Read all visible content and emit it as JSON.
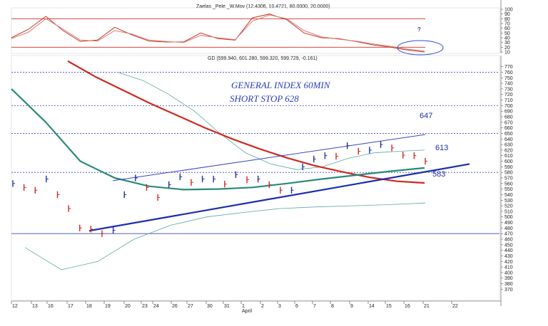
{
  "chart_data": [
    {
      "type": "line",
      "panel": "oscillator",
      "header": "Zaelas _Pele _W.Mov (12.4306, 10.4721, 80.0000, 20.0000)",
      "ylim": [
        10,
        100
      ],
      "yticks": [
        "100",
        "90",
        "80",
        "70",
        "60",
        "50",
        "40",
        "30",
        "20",
        "10"
      ],
      "levels": [
        80,
        20
      ],
      "series": [
        {
          "values": [
            40,
            58,
            85,
            55,
            32,
            35,
            62,
            46,
            33,
            31,
            31,
            50,
            38,
            35,
            82,
            90,
            78,
            50,
            40,
            38,
            32,
            25,
            20,
            14,
            10
          ]
        },
        {
          "values": [
            38,
            52,
            80,
            58,
            35,
            33,
            55,
            48,
            35,
            32,
            30,
            45,
            40,
            36,
            75,
            88,
            80,
            55,
            42,
            37,
            33,
            27,
            22,
            16,
            12
          ]
        }
      ],
      "annotations": [
        "?"
      ]
    },
    {
      "type": "line",
      "panel": "price",
      "header": "GD (599.940, 601.280, 599.320, 599.729, -0.161)",
      "ylim": [
        350,
        790
      ],
      "yticks": [
        "770",
        "760",
        "750",
        "740",
        "730",
        "720",
        "710",
        "700",
        "690",
        "680",
        "670",
        "660",
        "650",
        "640",
        "630",
        "620",
        "610",
        "600",
        "590",
        "580",
        "570",
        "560",
        "550",
        "540",
        "530",
        "520",
        "510",
        "500",
        "490",
        "480",
        "470",
        "460",
        "450",
        "440",
        "430",
        "420",
        "410",
        "400",
        "390",
        "380",
        "370"
      ],
      "xtick_labels": [
        "12",
        "13",
        "16",
        "17",
        "18",
        "19",
        "20",
        "23",
        "24",
        "26",
        "27",
        "30",
        "31",
        "1",
        "2",
        "3",
        "6",
        "7",
        "8",
        "9",
        "14",
        "15",
        "16",
        "21",
        "22"
      ],
      "month_label": "April",
      "price": [
        560,
        553,
        548,
        568,
        540,
        515,
        480,
        478,
        470,
        476,
        540,
        570,
        553,
        535,
        558,
        572,
        562,
        568,
        568,
        559,
        576,
        567,
        568,
        558,
        548,
        548,
        590,
        604,
        610,
        609,
        628,
        618,
        620,
        630,
        624,
        611,
        610,
        600
      ],
      "moving_averages": [
        {
          "name": "red",
          "values": [
            780,
            752,
            728,
            704,
            682,
            660,
            640,
            622,
            606,
            592,
            581,
            571,
            564,
            561
          ]
        },
        {
          "name": "teal",
          "values": [
            730,
            670,
            600,
            570,
            555,
            549,
            550,
            553,
            560,
            568,
            575,
            582,
            588
          ]
        }
      ],
      "bands": [
        {
          "name": "upper",
          "values": [
            760,
            745,
            720,
            690,
            650,
            615,
            595,
            585,
            590,
            605,
            615,
            618,
            620
          ]
        },
        {
          "name": "lower",
          "values": [
            445,
            405,
            420,
            460,
            485,
            500,
            508,
            515,
            518,
            520,
            522,
            525
          ]
        }
      ],
      "trendlines": [
        {
          "name": "support",
          "from": [
            0.118,
            475
          ],
          "to": [
            0.66,
            595
          ]
        },
        {
          "name": "channel top",
          "from": [
            0.16,
            565
          ],
          "to": [
            0.61,
            648
          ]
        }
      ],
      "annotations": [
        "GENERAL INDEX 60MIN",
        "SHORT STOP 628",
        "647",
        "613",
        "583"
      ]
    }
  ]
}
